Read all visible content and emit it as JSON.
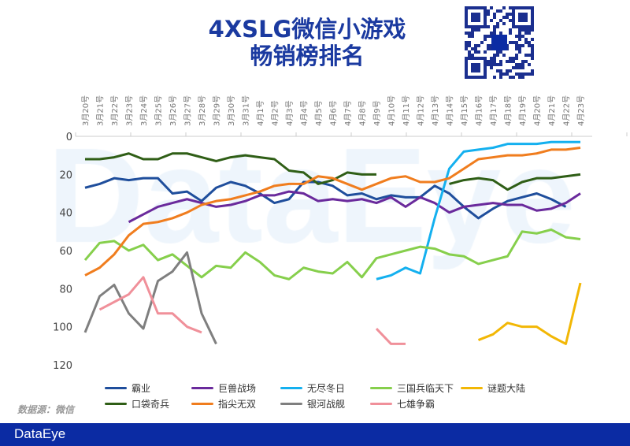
{
  "title_line1": "4XSLG微信小游戏",
  "title_line2": "畅销榜排名",
  "source": "数据源：微信",
  "footer_brand": "DataEye",
  "watermark": "DataEye",
  "chart_data": {
    "type": "line",
    "title": "4XSLG微信小游戏畅销榜排名",
    "xlabel": "",
    "ylabel": "",
    "ylim": [
      0,
      120
    ],
    "y_reversed": true,
    "yticks": [
      "0",
      "20",
      "40",
      "60",
      "80",
      "100",
      "120"
    ],
    "legend_position": "bottom",
    "x": [
      "3月20号",
      "3月21号",
      "3月22号",
      "3月23号",
      "3月24号",
      "3月25号",
      "3月26号",
      "3月27号",
      "3月28号",
      "3月29号",
      "3月30号",
      "3月31号",
      "4月1号",
      "4月2号",
      "4月3号",
      "4月4号",
      "4月5号",
      "4月6号",
      "4月7号",
      "4月8号",
      "4月9号",
      "4月10号",
      "4月11号",
      "4月12号",
      "4月13号",
      "4月14号",
      "4月15号",
      "4月16号",
      "4月17号",
      "4月18号",
      "4月19号",
      "4月20号",
      "4月21号",
      "4月22号",
      "4月23号"
    ],
    "series": [
      {
        "name": "霸业",
        "color": "#1f4e9c",
        "values": [
          27,
          25,
          22,
          23,
          22,
          22,
          30,
          29,
          34,
          27,
          24,
          26,
          30,
          35,
          33,
          24,
          24,
          26,
          31,
          30,
          33,
          31,
          32,
          32,
          26,
          30,
          37,
          43,
          38,
          34,
          32,
          30,
          33,
          37,
          null
        ]
      },
      {
        "name": "巨兽战场",
        "color": "#6a2a9c",
        "values": [
          null,
          null,
          null,
          45,
          41,
          37,
          35,
          33,
          35,
          37,
          36,
          34,
          31,
          31,
          29,
          30,
          34,
          33,
          34,
          33,
          35,
          32,
          37,
          32,
          35,
          40,
          37,
          36,
          35,
          36,
          36,
          39,
          38,
          35,
          30
        ]
      },
      {
        "name": "无尽冬日",
        "color": "#14b0ef",
        "values": [
          null,
          null,
          null,
          null,
          null,
          null,
          null,
          null,
          null,
          null,
          null,
          null,
          null,
          null,
          null,
          null,
          null,
          null,
          null,
          null,
          75,
          73,
          69,
          72,
          43,
          17,
          8,
          7,
          6,
          4,
          4,
          4,
          3,
          3,
          3
        ]
      },
      {
        "name": "三国兵临天下",
        "color": "#86cf4c",
        "values": [
          65,
          56,
          55,
          60,
          57,
          65,
          62,
          68,
          74,
          68,
          69,
          61,
          66,
          73,
          75,
          69,
          71,
          72,
          66,
          74,
          64,
          62,
          60,
          58,
          59,
          62,
          63,
          67,
          65,
          63,
          50,
          51,
          49,
          53,
          54
        ]
      },
      {
        "name": "谜题大陆",
        "color": "#f2b705",
        "values": [
          null,
          null,
          null,
          null,
          null,
          null,
          null,
          null,
          null,
          null,
          null,
          null,
          null,
          null,
          null,
          null,
          null,
          null,
          null,
          null,
          null,
          null,
          null,
          null,
          null,
          null,
          null,
          107,
          104,
          98,
          100,
          100,
          105,
          109,
          77
        ]
      },
      {
        "name": "口袋奇兵",
        "color": "#2f5e16",
        "values": [
          12,
          12,
          11,
          9,
          12,
          12,
          9,
          9,
          11,
          13,
          11,
          10,
          11,
          12,
          18,
          19,
          25,
          23,
          19,
          20,
          20,
          null,
          null,
          null,
          null,
          25,
          23,
          22,
          23,
          28,
          24,
          22,
          22,
          21,
          20
        ]
      },
      {
        "name": "指尖无双",
        "color": "#f07d1e",
        "values": [
          73,
          69,
          62,
          52,
          46,
          45,
          43,
          40,
          36,
          34,
          33,
          31,
          29,
          26,
          25,
          25,
          21,
          22,
          25,
          28,
          25,
          22,
          21,
          24,
          24,
          22,
          17,
          12,
          11,
          10,
          10,
          9,
          7,
          7,
          6
        ]
      },
      {
        "name": "银河战舰",
        "color": "#7f7f7f",
        "values": [
          103,
          84,
          78,
          93,
          101,
          76,
          71,
          61,
          93,
          109,
          null,
          null,
          null,
          null,
          null,
          null,
          null,
          null,
          null,
          null,
          null,
          null,
          null,
          null,
          null,
          null,
          null,
          null,
          null,
          null,
          null,
          null,
          null,
          null,
          null
        ]
      },
      {
        "name": "七雄争霸",
        "color": "#f0909a",
        "values": [
          null,
          91,
          87,
          83,
          74,
          93,
          93,
          100,
          103,
          null,
          null,
          null,
          null,
          null,
          null,
          null,
          null,
          null,
          null,
          null,
          101,
          109,
          109,
          null,
          null,
          null,
          null,
          null,
          null,
          null,
          null,
          null,
          null,
          null,
          null
        ]
      }
    ]
  }
}
